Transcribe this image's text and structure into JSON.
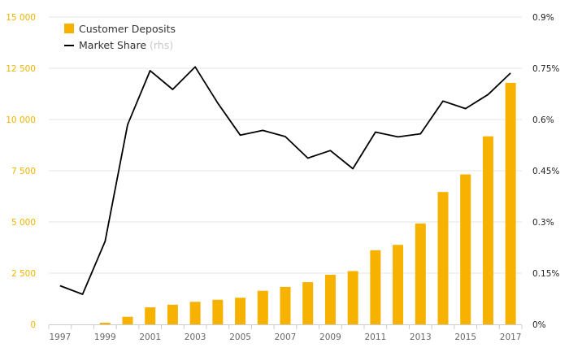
{
  "chart_data": {
    "type": "bar",
    "categories": [
      "1997",
      "1998",
      "1999",
      "2000",
      "2001",
      "2002",
      "2003",
      "2004",
      "2005",
      "2006",
      "2007",
      "2008",
      "2009",
      "2010",
      "2011",
      "2012",
      "2013",
      "2014",
      "2015",
      "2016",
      "2017"
    ],
    "x_tick_labels": [
      "1997",
      "1999",
      "2001",
      "2003",
      "2005",
      "2007",
      "2009",
      "2011",
      "2013",
      "2015",
      "2017"
    ],
    "series": [
      {
        "name": "Customer Deposits",
        "chart": "bar",
        "axis": "left",
        "values": [
          0,
          0,
          80,
          370,
          830,
          960,
          1100,
          1200,
          1300,
          1640,
          1830,
          2060,
          2420,
          2600,
          3620,
          3880,
          4920,
          6460,
          7320,
          9180,
          11790
        ]
      },
      {
        "name": "Market Share",
        "name_suffix": "(rhs)",
        "chart": "line",
        "axis": "right",
        "values": [
          0.113,
          0.088,
          0.243,
          0.585,
          0.743,
          0.688,
          0.754,
          0.648,
          0.554,
          0.568,
          0.55,
          0.487,
          0.509,
          0.456,
          0.563,
          0.549,
          0.558,
          0.654,
          0.632,
          0.673,
          0.736
        ]
      }
    ],
    "y_left": {
      "ylim": [
        0,
        15000
      ],
      "ticks": [
        0,
        2500,
        5000,
        7500,
        10000,
        12500,
        15000
      ],
      "tick_labels": [
        "0",
        "2 500",
        "5 000",
        "7 500",
        "10 000",
        "12 500",
        "15 000"
      ]
    },
    "y_right": {
      "ylim": [
        0,
        0.9
      ],
      "ticks": [
        0,
        0.15,
        0.3,
        0.45,
        0.6,
        0.75,
        0.9
      ],
      "tick_labels": [
        "0%",
        "0.15%",
        "0.3%",
        "0.45%",
        "0.6%",
        "0.75%",
        "0.9%"
      ]
    },
    "legend": "top-left",
    "grid": true,
    "colors": {
      "bar": "#f7b200",
      "line": "#000000",
      "left_axis_text": "#f0b400",
      "right_axis_text": "#222222",
      "x_axis_text": "#666666",
      "grid": "#e6e6e6",
      "legend_suffix": "#c8c8c8"
    }
  }
}
